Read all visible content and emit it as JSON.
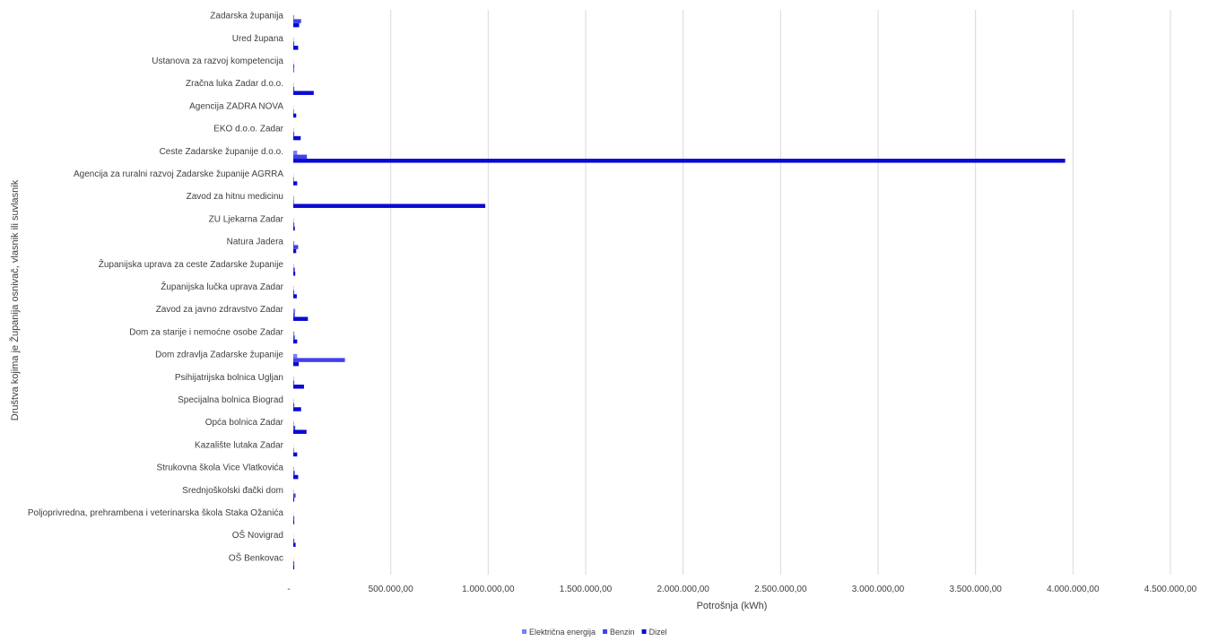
{
  "chart_data": {
    "type": "bar",
    "orientation": "horizontal",
    "title": "",
    "xlabel": "Potrošnja (kWh)",
    "ylabel": "Društva kojima je Županija osnivač, vlasnik ili suvlasnik",
    "xlim": [
      0,
      4500000
    ],
    "x_ticks": [
      0,
      500000,
      1000000,
      1500000,
      2000000,
      2500000,
      3000000,
      3500000,
      4000000,
      4500000
    ],
    "x_tick_labels": [
      "-",
      "500.000,00",
      "1.000.000,00",
      "1.500.000,00",
      "2.000.000,00",
      "2.500.000,00",
      "3.000.000,00",
      "3.500.000,00",
      "4.000.000,00",
      "4.500.000,00"
    ],
    "grid": true,
    "legend_position": "bottom",
    "categories": [
      "Zadarska županija",
      "Ured župana",
      "Ustanova za razvoj kompetencija",
      "Zračna luka Zadar d.o.o.",
      "Agencija ZADRA NOVA",
      "EKO d.o.o. Zadar",
      "Ceste Zadarske županije d.o.o.",
      "Agencija za ruralni razvoj Zadarske županije AGRRA",
      "Zavod za hitnu medicinu",
      "ZU Ljekarna Zadar",
      "Natura Jadera",
      "Županijska uprava za ceste Zadarske županije",
      "Županijska lučka uprava Zadar",
      "Zavod za javno zdravstvo Zadar",
      "Dom za starije i nemoćne osobe Zadar",
      "Dom zdravlja Zadarske županije",
      "Psihijatrijska bolnica Ugljan",
      "Specijalna bolnica Biograd",
      "Opća bolnica Zadar",
      "Kazalište lutaka Zadar",
      "Strukovna škola Vice Vlatkovića",
      "Srednjoškolski đački dom",
      "Poljoprivredna, prehrambena i veterinarska škola Staka Ožanića",
      "OŠ Novigrad",
      "OŠ Benkovac"
    ],
    "series": [
      {
        "name": "Električna energija",
        "color": "#7b7bf5",
        "values": [
          5000,
          2000,
          1000,
          2000,
          1000,
          2000,
          20000,
          1000,
          3000,
          2000,
          5000,
          2000,
          2000,
          10000,
          5000,
          20000,
          2000,
          2000,
          3000,
          1000,
          3000,
          2000,
          1000,
          1000,
          1000
        ]
      },
      {
        "name": "Benzin",
        "color": "#4141e8",
        "values": [
          40000,
          5000,
          5000,
          5000,
          3000,
          5000,
          70000,
          3000,
          3000,
          5000,
          25000,
          8000,
          5000,
          8000,
          8000,
          265000,
          5000,
          5000,
          10000,
          3000,
          8000,
          12000,
          5000,
          5000,
          5000
        ]
      },
      {
        "name": "Dizel",
        "color": "#0a0ad2",
        "values": [
          30000,
          25000,
          3000,
          105000,
          15000,
          38000,
          3960000,
          20000,
          985000,
          8000,
          15000,
          10000,
          18000,
          75000,
          20000,
          28000,
          55000,
          40000,
          68000,
          20000,
          25000,
          5000,
          5000,
          12000,
          5000
        ]
      }
    ]
  }
}
